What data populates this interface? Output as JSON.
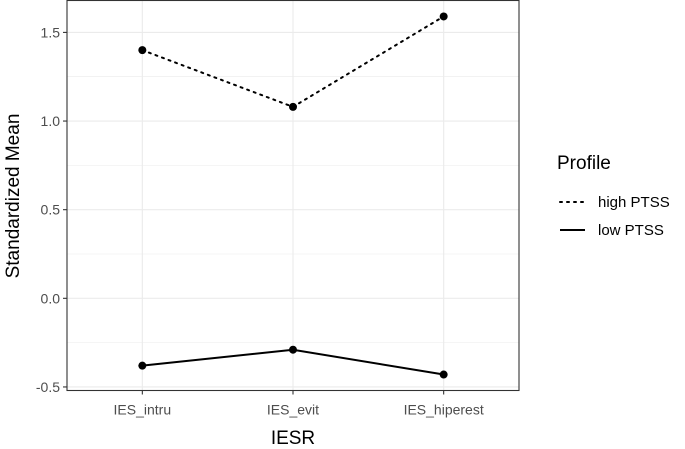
{
  "chart_data": {
    "type": "line",
    "categories": [
      "IES_intru",
      "IES_evit",
      "IES_hiperest"
    ],
    "series": [
      {
        "name": "high PTSS",
        "values": [
          1.4,
          1.08,
          1.59
        ],
        "linestyle": "dotted"
      },
      {
        "name": "low PTSS",
        "values": [
          -0.38,
          -0.29,
          -0.43
        ],
        "linestyle": "solid"
      }
    ],
    "xlabel": "IESR",
    "ylabel": "Standardized Mean",
    "ylim": [
      -0.52,
      1.68
    ],
    "yticks": [
      -0.5,
      0.0,
      0.5,
      1.0,
      1.5
    ],
    "ytick_labels": [
      "-0.5",
      "0.0",
      "0.5",
      "1.0",
      "1.5"
    ],
    "grid": true,
    "legend": {
      "title": "Profile",
      "position": "right"
    },
    "colors": {
      "line": "#000000",
      "grid": "#ebebeb",
      "border": "#333333",
      "tick_text": "#4d4d4d"
    }
  }
}
